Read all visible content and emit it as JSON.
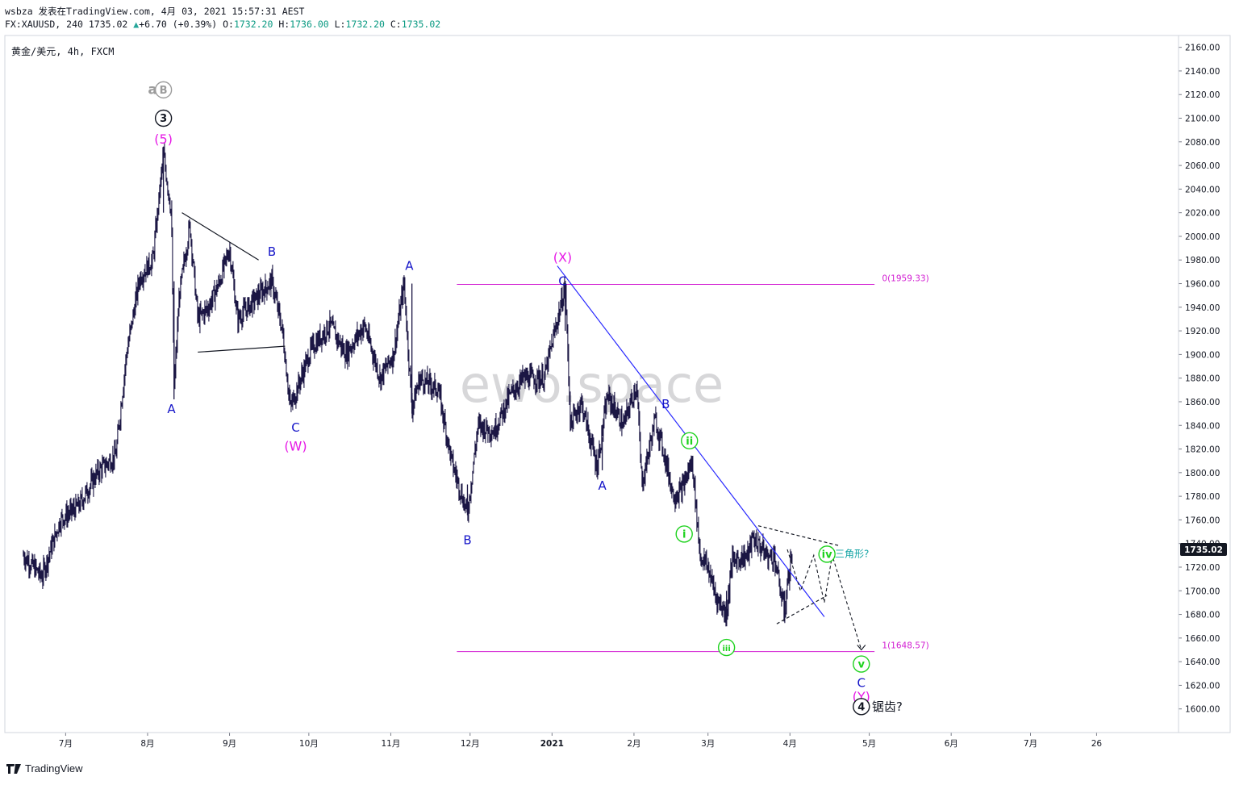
{
  "header": {
    "line1": "wsbza 发表在TradingView.com, 4月 03, 2021 15:57:31 AEST",
    "symbol_prefix": "FX:XAUUSD, 240 ",
    "last": "1735.02",
    "change": "+6.70 (+0.39%)",
    "o_label": "O:",
    "o": "1732.20",
    "h_label": "H:",
    "h": "1736.00",
    "l_label": "L:",
    "l": "1732.20",
    "c_label": "C:",
    "c": "1735.02"
  },
  "pane_title": "黄金/美元, 4h, FXCM",
  "watermark": "ewo.space",
  "footer": {
    "brand": "TradingView"
  },
  "colors": {
    "candles": "#1b1644",
    "wave_blue": "#1414c8",
    "wave_magenta": "#e619e6",
    "wave_green": "#1ed21e",
    "fib_line": "#d21ed2",
    "trend_line": "#2828ff",
    "price_tag": "#131722"
  },
  "chart_data": {
    "type": "line",
    "symbol": "FX:XAUUSD",
    "timeframe": "4h",
    "y_axis": {
      "ticks": [
        "2160.00",
        "2140.00",
        "2120.00",
        "2100.00",
        "2080.00",
        "2060.00",
        "2040.00",
        "2020.00",
        "2000.00",
        "1980.00",
        "1960.00",
        "1940.00",
        "1920.00",
        "1900.00",
        "1880.00",
        "1860.00",
        "1840.00",
        "1820.00",
        "1800.00",
        "1780.00",
        "1760.00",
        "1740.00",
        "1720.00",
        "1700.00",
        "1680.00",
        "1660.00",
        "1640.00",
        "1620.00",
        "1600.00"
      ],
      "range": [
        1580,
        2170
      ]
    },
    "x_axis": {
      "ticks": [
        "7月",
        "8月",
        "9月",
        "10月",
        "11月",
        "12月",
        "2021",
        "2月",
        "3月",
        "4月",
        "5月",
        "6月",
        "7月",
        "26"
      ]
    },
    "price_series": {
      "name": "XAUUSD",
      "points": [
        [
          "2020-06-15",
          1730
        ],
        [
          "2020-06-22",
          1712
        ],
        [
          "2020-06-29",
          1760
        ],
        [
          "2020-07-06",
          1772
        ],
        [
          "2020-07-13",
          1800
        ],
        [
          "2020-07-20",
          1815
        ],
        [
          "2020-07-24",
          1900
        ],
        [
          "2020-07-29",
          1965
        ],
        [
          "2020-08-03",
          1980
        ],
        [
          "2020-08-07",
          2070
        ],
        [
          "2020-08-10",
          2020
        ],
        [
          "2020-08-11",
          1870
        ],
        [
          "2020-08-13",
          1950
        ],
        [
          "2020-08-17",
          2010
        ],
        [
          "2020-08-20",
          1930
        ],
        [
          "2020-08-24",
          1940
        ],
        [
          "2020-08-28",
          1960
        ],
        [
          "2020-09-01",
          1990
        ],
        [
          "2020-09-04",
          1930
        ],
        [
          "2020-09-08",
          1940
        ],
        [
          "2020-09-14",
          1955
        ],
        [
          "2020-09-17",
          1962
        ],
        [
          "2020-09-21",
          1920
        ],
        [
          "2020-09-24",
          1855
        ],
        [
          "2020-09-28",
          1880
        ],
        [
          "2020-10-02",
          1905
        ],
        [
          "2020-10-09",
          1925
        ],
        [
          "2020-10-15",
          1900
        ],
        [
          "2020-10-22",
          1925
        ],
        [
          "2020-10-28",
          1880
        ],
        [
          "2020-11-02",
          1900
        ],
        [
          "2020-11-06",
          1960
        ],
        [
          "2020-11-09",
          1855
        ],
        [
          "2020-11-12",
          1880
        ],
        [
          "2020-11-19",
          1870
        ],
        [
          "2020-11-24",
          1810
        ],
        [
          "2020-11-30",
          1765
        ],
        [
          "2020-12-04",
          1840
        ],
        [
          "2020-12-10",
          1835
        ],
        [
          "2020-12-16",
          1865
        ],
        [
          "2020-12-21",
          1880
        ],
        [
          "2020-12-29",
          1880
        ],
        [
          "2021-01-06",
          1958
        ],
        [
          "2021-01-08",
          1840
        ],
        [
          "2021-01-12",
          1860
        ],
        [
          "2021-01-18",
          1805
        ],
        [
          "2021-01-22",
          1865
        ],
        [
          "2021-01-28",
          1840
        ],
        [
          "2021-02-02",
          1875
        ],
        [
          "2021-02-04",
          1790
        ],
        [
          "2021-02-09",
          1845
        ],
        [
          "2021-02-12",
          1820
        ],
        [
          "2021-02-16",
          1780
        ],
        [
          "2021-02-19",
          1785
        ],
        [
          "2021-02-23",
          1810
        ],
        [
          "2021-02-26",
          1730
        ],
        [
          "2021-03-01",
          1720
        ],
        [
          "2021-03-04",
          1695
        ],
        [
          "2021-03-08",
          1680
        ],
        [
          "2021-03-10",
          1725
        ],
        [
          "2021-03-16",
          1730
        ],
        [
          "2021-03-18",
          1745
        ],
        [
          "2021-03-24",
          1728
        ],
        [
          "2021-03-26",
          1730
        ],
        [
          "2021-03-30",
          1680
        ],
        [
          "2021-03-31",
          1705
        ],
        [
          "2021-04-02",
          1735.02
        ]
      ]
    },
    "current_price": "1735.02",
    "fib_levels": [
      {
        "label": "0(1959.33)",
        "value": 1959.33
      },
      {
        "label": "1(1648.57)",
        "value": 1648.57
      }
    ],
    "annotations": [
      {
        "text": "alt",
        "date": "2020-08-05",
        "y": 2124,
        "style": "gray"
      },
      {
        "text": "B",
        "date": "2020-08-07",
        "y": 2124,
        "style": "gray-circle"
      },
      {
        "text": "3",
        "date": "2020-08-07",
        "y": 2100,
        "style": "black-circle"
      },
      {
        "text": "(5)",
        "date": "2020-08-07",
        "y": 2082,
        "style": "magenta"
      },
      {
        "text": "A",
        "date": "2020-08-10",
        "y": 1854,
        "style": "blue"
      },
      {
        "text": "B",
        "date": "2020-09-17",
        "y": 1987,
        "style": "blue"
      },
      {
        "text": "C",
        "date": "2020-09-26",
        "y": 1838,
        "style": "blue"
      },
      {
        "text": "(W)",
        "date": "2020-09-26",
        "y": 1822,
        "style": "magenta"
      },
      {
        "text": "A",
        "date": "2020-11-08",
        "y": 1975,
        "style": "blue"
      },
      {
        "text": "B",
        "date": "2020-11-30",
        "y": 1743,
        "style": "blue"
      },
      {
        "text": "(X)",
        "date": "2021-01-05",
        "y": 1982,
        "style": "magenta"
      },
      {
        "text": "C",
        "date": "2021-01-05",
        "y": 1962,
        "style": "blue"
      },
      {
        "text": "A",
        "date": "2021-01-20",
        "y": 1789,
        "style": "blue"
      },
      {
        "text": "B",
        "date": "2021-02-13",
        "y": 1858,
        "style": "blue"
      },
      {
        "text": "ii",
        "date": "2021-02-22",
        "y": 1827,
        "style": "green-circle"
      },
      {
        "text": "i",
        "date": "2021-02-20",
        "y": 1748,
        "style": "green-circle"
      },
      {
        "text": "iii",
        "date": "2021-03-08",
        "y": 1652,
        "style": "green-circle"
      },
      {
        "text": "iv",
        "date": "2021-04-15",
        "y": 1731,
        "style": "green-circle"
      },
      {
        "text": "三角形?",
        "date": "2021-04-18",
        "y": 1732,
        "style": "teal"
      },
      {
        "text": "v",
        "date": "2021-04-28",
        "y": 1638,
        "style": "green-circle"
      },
      {
        "text": "C",
        "date": "2021-04-28",
        "y": 1622,
        "style": "blue"
      },
      {
        "text": "(Y)",
        "date": "2021-04-28",
        "y": 1610,
        "style": "magenta"
      },
      {
        "text": "4",
        "date": "2021-04-28",
        "y": 1602,
        "style": "black-circle"
      },
      {
        "text": "锯齿?",
        "date": "2021-05-02",
        "y": 1602,
        "style": "dark"
      }
    ],
    "trend_lines": [
      {
        "name": "downtrend",
        "from": [
          "2021-01-03",
          1975
        ],
        "to": [
          "2021-04-14",
          1678
        ],
        "style": "blue"
      },
      {
        "name": "tri-upper-2020",
        "from": [
          "2020-08-14",
          2020
        ],
        "to": [
          "2020-09-12",
          1980
        ],
        "style": "black"
      },
      {
        "name": "tri-lower-2020",
        "from": [
          "2020-08-20",
          1902
        ],
        "to": [
          "2020-09-22",
          1907
        ],
        "style": "black"
      },
      {
        "name": "projection-upper",
        "from": [
          "2021-03-20",
          1755
        ],
        "to": [
          "2021-04-20",
          1738
        ],
        "style": "dashed"
      },
      {
        "name": "projection-lower",
        "from": [
          "2021-03-27",
          1672
        ],
        "to": [
          "2021-04-15",
          1696
        ],
        "style": "dashed"
      }
    ],
    "projected_path": [
      [
        "2021-03-31",
        1735
      ],
      [
        "2021-04-05",
        1700
      ],
      [
        "2021-04-10",
        1730
      ],
      [
        "2021-04-14",
        1690
      ],
      [
        "2021-04-17",
        1730
      ],
      [
        "2021-04-28",
        1650
      ]
    ],
    "grid": false
  }
}
